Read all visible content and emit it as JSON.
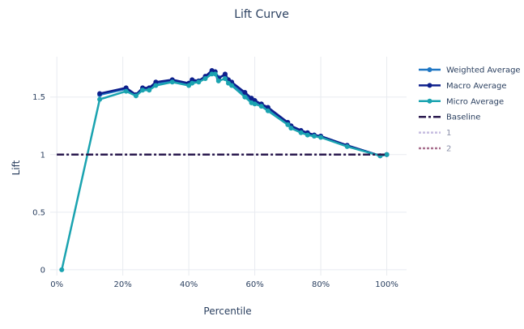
{
  "chart_data": {
    "type": "line",
    "title": "Lift Curve",
    "xlabel": "Percentile",
    "ylabel": "Lift",
    "xlim": [
      -0.02,
      1.06
    ],
    "ylim": [
      -0.05,
      1.85
    ],
    "grid": true,
    "legend_position": "right",
    "x_ticks": [
      {
        "value": 0.0,
        "label": "0%"
      },
      {
        "value": 0.2,
        "label": "20%"
      },
      {
        "value": 0.4,
        "label": "40%"
      },
      {
        "value": 0.6,
        "label": "60%"
      },
      {
        "value": 0.8,
        "label": "80%"
      },
      {
        "value": 1.0,
        "label": "100%"
      }
    ],
    "y_ticks": [
      {
        "value": 0,
        "label": "0"
      },
      {
        "value": 0.5,
        "label": "0.5"
      },
      {
        "value": 1,
        "label": "1"
      },
      {
        "value": 1.5,
        "label": "1.5"
      }
    ],
    "series": [
      {
        "name": "Weighted Average",
        "color": "#1f77c4",
        "style": "line+markers",
        "x": [
          0.13,
          0.21,
          0.24,
          0.26,
          0.28,
          0.3,
          0.35,
          0.4,
          0.41,
          0.43,
          0.45,
          0.47,
          0.48,
          0.49,
          0.51,
          0.52,
          0.53,
          0.57,
          0.59,
          0.6,
          0.62,
          0.64,
          0.7,
          0.71,
          0.74,
          0.76,
          0.78,
          0.8,
          0.88,
          0.98,
          1.0
        ],
        "y": [
          1.52,
          1.57,
          1.52,
          1.57,
          1.57,
          1.62,
          1.64,
          1.61,
          1.64,
          1.64,
          1.67,
          1.72,
          1.72,
          1.67,
          1.69,
          1.64,
          1.62,
          1.52,
          1.47,
          1.46,
          1.43,
          1.4,
          1.27,
          1.24,
          1.2,
          1.18,
          1.17,
          1.16,
          1.08,
          0.99,
          1.0
        ]
      },
      {
        "name": "Macro Average",
        "color": "#0d1f8c",
        "style": "line+markers",
        "x": [
          0.13,
          0.21,
          0.24,
          0.26,
          0.28,
          0.3,
          0.35,
          0.4,
          0.41,
          0.43,
          0.45,
          0.47,
          0.48,
          0.49,
          0.51,
          0.52,
          0.53,
          0.57,
          0.59,
          0.6,
          0.62,
          0.64,
          0.7,
          0.71,
          0.74,
          0.76,
          0.78,
          0.8,
          0.88,
          0.98,
          1.0
        ],
        "y": [
          1.53,
          1.58,
          1.52,
          1.58,
          1.58,
          1.63,
          1.65,
          1.62,
          1.65,
          1.64,
          1.68,
          1.73,
          1.72,
          1.66,
          1.7,
          1.65,
          1.63,
          1.54,
          1.49,
          1.47,
          1.44,
          1.41,
          1.28,
          1.25,
          1.21,
          1.19,
          1.17,
          1.16,
          1.08,
          0.99,
          1.0
        ]
      },
      {
        "name": "Micro Average",
        "color": "#1aa3b0",
        "style": "line+markers",
        "x": [
          0.015,
          0.13,
          0.21,
          0.24,
          0.26,
          0.28,
          0.3,
          0.35,
          0.4,
          0.41,
          0.43,
          0.45,
          0.47,
          0.48,
          0.49,
          0.51,
          0.52,
          0.53,
          0.57,
          0.59,
          0.6,
          0.62,
          0.64,
          0.7,
          0.71,
          0.74,
          0.76,
          0.78,
          0.8,
          0.88,
          0.98,
          1.0
        ],
        "y": [
          0.0,
          1.48,
          1.55,
          1.51,
          1.56,
          1.56,
          1.6,
          1.63,
          1.6,
          1.62,
          1.63,
          1.66,
          1.7,
          1.7,
          1.64,
          1.66,
          1.62,
          1.6,
          1.5,
          1.45,
          1.44,
          1.42,
          1.38,
          1.26,
          1.23,
          1.19,
          1.17,
          1.16,
          1.15,
          1.07,
          0.99,
          1.0
        ]
      },
      {
        "name": "Baseline",
        "color": "#2b1a4f",
        "style": "dashdot",
        "x": [
          0.0,
          1.0
        ],
        "y": [
          1.0,
          1.0
        ]
      },
      {
        "name": "1",
        "color": "#c6bde0",
        "style": "dotted",
        "legend_only": true
      },
      {
        "name": "2",
        "color": "#a8708e",
        "style": "dotted",
        "legend_only": true
      }
    ]
  }
}
